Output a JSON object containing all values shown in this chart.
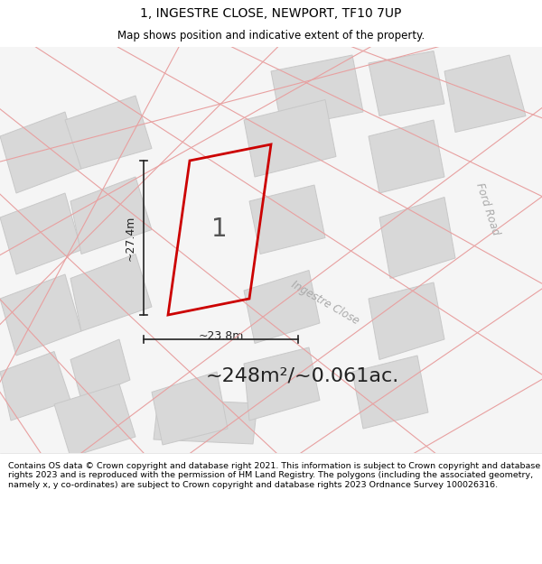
{
  "title_line1": "1, INGESTRE CLOSE, NEWPORT, TF10 7UP",
  "title_line2": "Map shows position and indicative extent of the property.",
  "area_text": "~248m²/~0.061ac.",
  "dim1_text": "~27.4m",
  "dim2_text": "~23.8m",
  "plot_number": "1",
  "road_label1": "Ingestre Close",
  "road_label2": "Ford Road",
  "footer_text": "Contains OS data © Crown copyright and database right 2021. This information is subject to Crown copyright and database rights 2023 and is reproduced with the permission of HM Land Registry. The polygons (including the associated geometry, namely x, y co-ordinates) are subject to Crown copyright and database rights 2023 Ordnance Survey 100026316.",
  "map_bg": "#f5f5f5",
  "building_fill": "#d8d8d8",
  "building_edge": "#c8c8c8",
  "highlight_edge": "#cc0000",
  "dim_line_color": "#222222",
  "road_line_color": "#e8a0a0",
  "title_bg": "#ffffff",
  "footer_bg": "#ffffff",
  "area_text_color": "#222222",
  "plot_num_color": "#555555",
  "road_label_color": "#aaaaaa"
}
